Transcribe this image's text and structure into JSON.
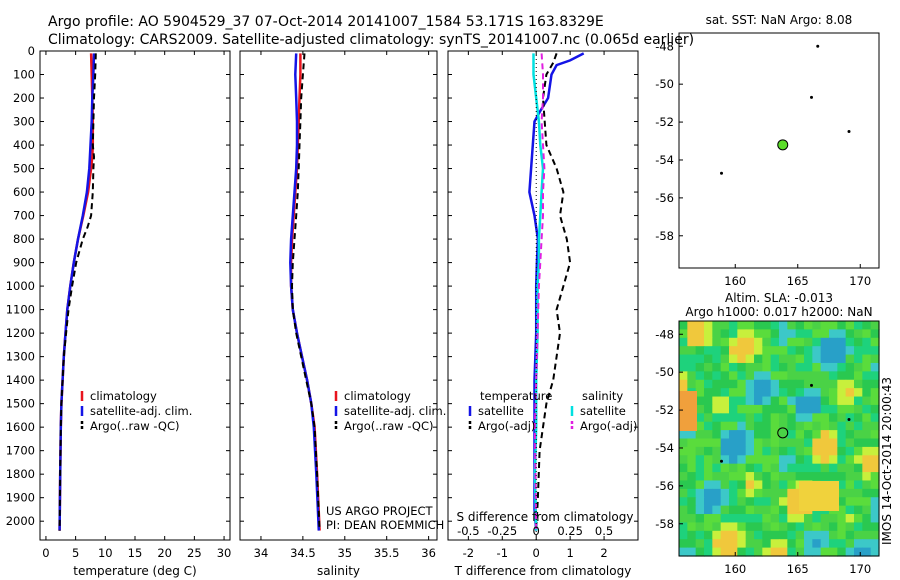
{
  "header": {
    "line1": "Argo profile: AO 5904529_37 07-Oct-2014 20141007_1584 53.171S 163.8329E",
    "line2": "Climatology: CARS2009. Satellite-adjusted climatology: synTS_20141007.nc (0.065d earlier)"
  },
  "credit": {
    "line1": "US ARGO PROJECT",
    "line2": "PI: DEAN ROEMMICH"
  },
  "sst_title": "sat. SST: NaN Argo: 8.08",
  "sla_title1": "Altim. SLA: -0.013",
  "sla_title2": "Argo h1000: 0.017 h2000: NaN",
  "imos_stamp": "IMOS 14-Oct-2014 20:00:43",
  "colors": {
    "climatology": "#e8141e",
    "satellite": "#1414e6",
    "argo": "#000000",
    "sal_satellite": "#00e0e0",
    "sal_argo": "#e020e0",
    "marker": "#5adc28"
  },
  "chart_data": [
    {
      "type": "line",
      "xlabel": "temperature (deg C)",
      "ylabel": "",
      "xlim": [
        -1,
        31
      ],
      "ylim": [
        2080,
        0
      ],
      "xticks": [
        0,
        5,
        10,
        15,
        20,
        25,
        30
      ],
      "yticks": [
        0,
        100,
        200,
        300,
        400,
        500,
        600,
        700,
        800,
        900,
        1000,
        1100,
        1200,
        1300,
        1400,
        1500,
        1600,
        1700,
        1800,
        1900,
        2000
      ],
      "legend": [
        "climatology",
        "satellite-adj. clim.",
        "Argo(..raw -QC)"
      ],
      "legend_position": "lower-center",
      "series": [
        {
          "name": "climatology",
          "style": "solid",
          "x": [
            7.6,
            7.7,
            7.8,
            7.9,
            7.9,
            7.8,
            7.6,
            7.1,
            6.3,
            5.4,
            4.7,
            4.1,
            3.6,
            3.3,
            3.0,
            2.8,
            2.6,
            2.5,
            2.4,
            2.3
          ],
          "y": [
            10,
            100,
            200,
            300,
            400,
            450,
            500,
            600,
            700,
            800,
            900,
            1000,
            1100,
            1200,
            1300,
            1400,
            1500,
            1600,
            1800,
            2040
          ]
        },
        {
          "name": "satellite-adj. clim.",
          "style": "solid",
          "x": [
            8.1,
            8.0,
            7.8,
            7.7,
            7.5,
            7.3,
            6.9,
            6.2,
            5.4,
            4.7,
            4.1,
            3.6,
            3.3,
            3.0,
            2.8,
            2.6,
            2.5,
            2.4,
            2.3
          ],
          "y": [
            10,
            100,
            200,
            300,
            400,
            500,
            600,
            700,
            800,
            900,
            1000,
            1100,
            1200,
            1300,
            1400,
            1500,
            1600,
            1800,
            2040
          ]
        },
        {
          "name": "Argo(..raw -QC)",
          "style": "dashed",
          "x": [
            8.4,
            8.3,
            8.1,
            8.0,
            7.9,
            8.1,
            8.0,
            7.9,
            7.6,
            7.0,
            6.2,
            5.1,
            4.4,
            3.8,
            3.4,
            3.0,
            2.8,
            2.6,
            2.5,
            2.4,
            2.3
          ],
          "y": [
            10,
            100,
            200,
            300,
            400,
            450,
            500,
            600,
            700,
            750,
            800,
            900,
            1000,
            1100,
            1200,
            1300,
            1400,
            1500,
            1600,
            1800,
            2040
          ]
        }
      ]
    },
    {
      "type": "line",
      "xlabel": "salinity",
      "ylabel": "",
      "xlim": [
        33.75,
        36.1
      ],
      "ylim": [
        2080,
        0
      ],
      "xticks": [
        34,
        34.5,
        35,
        35.5,
        36
      ],
      "legend": [
        "climatology",
        "satellite-adj. clim.",
        "Argo(..raw -QC)"
      ],
      "legend_position": "lower-center",
      "series": [
        {
          "name": "climatology",
          "style": "solid",
          "x": [
            34.47,
            34.47,
            34.46,
            34.45,
            34.44,
            34.43,
            34.41,
            34.39,
            34.37,
            34.36,
            34.36,
            34.38,
            34.43,
            34.49,
            34.55,
            34.6,
            34.64,
            34.67,
            34.7
          ],
          "y": [
            10,
            100,
            200,
            300,
            400,
            500,
            600,
            700,
            800,
            900,
            1000,
            1100,
            1200,
            1300,
            1400,
            1500,
            1600,
            1800,
            2040
          ]
        },
        {
          "name": "satellite-adj. clim.",
          "style": "solid",
          "x": [
            34.42,
            34.41,
            34.42,
            34.43,
            34.43,
            34.42,
            34.4,
            34.38,
            34.36,
            34.35,
            34.36,
            34.38,
            34.43,
            34.49,
            34.55,
            34.6,
            34.63,
            34.66,
            34.69
          ],
          "y": [
            10,
            100,
            200,
            300,
            400,
            500,
            600,
            700,
            800,
            900,
            1000,
            1100,
            1200,
            1300,
            1400,
            1500,
            1600,
            1800,
            2040
          ]
        },
        {
          "name": "Argo(..raw -QC)",
          "style": "dashed",
          "x": [
            34.52,
            34.5,
            34.48,
            34.47,
            34.46,
            34.45,
            34.44,
            34.42,
            34.4,
            34.38,
            34.37,
            34.38,
            34.42,
            34.48,
            34.54,
            34.6,
            34.64,
            34.67,
            34.7
          ],
          "y": [
            10,
            100,
            200,
            300,
            400,
            500,
            600,
            700,
            800,
            900,
            1000,
            1100,
            1200,
            1300,
            1400,
            1500,
            1600,
            1800,
            2040
          ]
        }
      ]
    },
    {
      "type": "line",
      "xlabel": "T difference from climatology",
      "xlabel2": "S difference from climatology",
      "xlim": [
        -2.6,
        3.0
      ],
      "xticks": [
        -2,
        -1,
        0,
        1,
        2
      ],
      "xticks_top": [
        -0.5,
        -0.25,
        0,
        0.25,
        0.5
      ],
      "xlim_top": [
        -0.65,
        0.75
      ],
      "ylim": [
        2080,
        0
      ],
      "legend_groups": [
        {
          "title": "temperature",
          "entries": [
            "satellite",
            "Argo(-adj)"
          ]
        },
        {
          "title": "salinity",
          "entries": [
            "satellite",
            "Argo(-adj)"
          ]
        }
      ],
      "series": [
        {
          "name": "satellite",
          "group": "temperature",
          "style": "solid",
          "x": [
            1.4,
            1.0,
            0.6,
            0.45,
            0.35,
            0.1,
            -0.05,
            -0.1,
            -0.15,
            -0.2,
            -0.05,
            0.05,
            0.02,
            0.0,
            0.0,
            -0.05,
            -0.05,
            -0.05,
            -0.05,
            -0.05,
            0.0
          ],
          "y": [
            10,
            40,
            60,
            100,
            200,
            260,
            300,
            400,
            500,
            600,
            700,
            800,
            900,
            1000,
            1200,
            1400,
            1500,
            1600,
            1800,
            1950,
            2040
          ]
        },
        {
          "name": "Argo(-adj)",
          "group": "temperature",
          "style": "dashed",
          "x": [
            0.6,
            0.5,
            0.3,
            0.2,
            0.3,
            0.6,
            0.8,
            0.7,
            0.9,
            1.0,
            0.8,
            0.6,
            0.7,
            0.6,
            0.5,
            0.3,
            0.2,
            0.1,
            0.05,
            0.0
          ],
          "y": [
            10,
            50,
            100,
            200,
            400,
            500,
            600,
            700,
            800,
            900,
            1000,
            1100,
            1200,
            1300,
            1400,
            1500,
            1600,
            1700,
            1900,
            2040
          ]
        },
        {
          "name": "satellite",
          "group": "salinity",
          "style": "solid",
          "x": [
            -0.02,
            -0.02,
            0.0,
            0.02,
            0.03,
            0.05,
            0.04,
            0.03,
            0.02,
            0.02,
            0.01,
            0.01,
            0.0,
            0.0,
            -0.01,
            0.0
          ],
          "y": [
            10,
            100,
            200,
            300,
            400,
            500,
            600,
            700,
            800,
            900,
            1000,
            1200,
            1400,
            1600,
            1800,
            2040
          ]
        },
        {
          "name": "Argo(-adj)",
          "group": "salinity",
          "style": "dashed",
          "x": [
            0.04,
            0.05,
            0.05,
            0.04,
            0.05,
            0.06,
            0.05,
            0.05,
            0.04,
            0.03,
            0.02,
            0.01,
            0.0,
            -0.01,
            0.0
          ],
          "y": [
            10,
            100,
            200,
            300,
            400,
            500,
            600,
            700,
            800,
            900,
            1000,
            1200,
            1400,
            1600,
            2040
          ]
        }
      ]
    },
    {
      "type": "scatter",
      "title": "sat. SST: NaN Argo: 8.08",
      "xlim": [
        155.5,
        171.5
      ],
      "ylim": [
        -59.7,
        -47.3
      ],
      "xticks": [
        160,
        165,
        170
      ],
      "yticks": [
        -48,
        -50,
        -52,
        -54,
        -56,
        -58
      ],
      "points": [
        {
          "kind": "argo_position",
          "x": 163.8,
          "y": -53.2
        },
        {
          "kind": "island",
          "x": 166.1,
          "y": -50.7
        },
        {
          "kind": "island",
          "x": 169.1,
          "y": -52.5
        },
        {
          "kind": "island",
          "x": 158.9,
          "y": -54.7
        },
        {
          "kind": "island",
          "x": 166.6,
          "y": -48.0
        }
      ]
    },
    {
      "type": "heatmap",
      "title": "Altim. SLA: -0.013",
      "subtitle": "Argo h1000: 0.017 h2000: NaN",
      "xlim": [
        155.5,
        171.5
      ],
      "ylim": [
        -59.7,
        -47.3
      ],
      "xticks": [
        160,
        165,
        170
      ],
      "yticks": [
        -48,
        -50,
        -52,
        -54,
        -56,
        -58
      ],
      "points": [
        {
          "kind": "argo_position",
          "x": 163.8,
          "y": -53.2
        },
        {
          "kind": "island",
          "x": 166.1,
          "y": -50.7
        },
        {
          "kind": "island",
          "x": 169.1,
          "y": -52.5
        },
        {
          "kind": "island",
          "x": 158.9,
          "y": -54.7
        }
      ]
    }
  ]
}
